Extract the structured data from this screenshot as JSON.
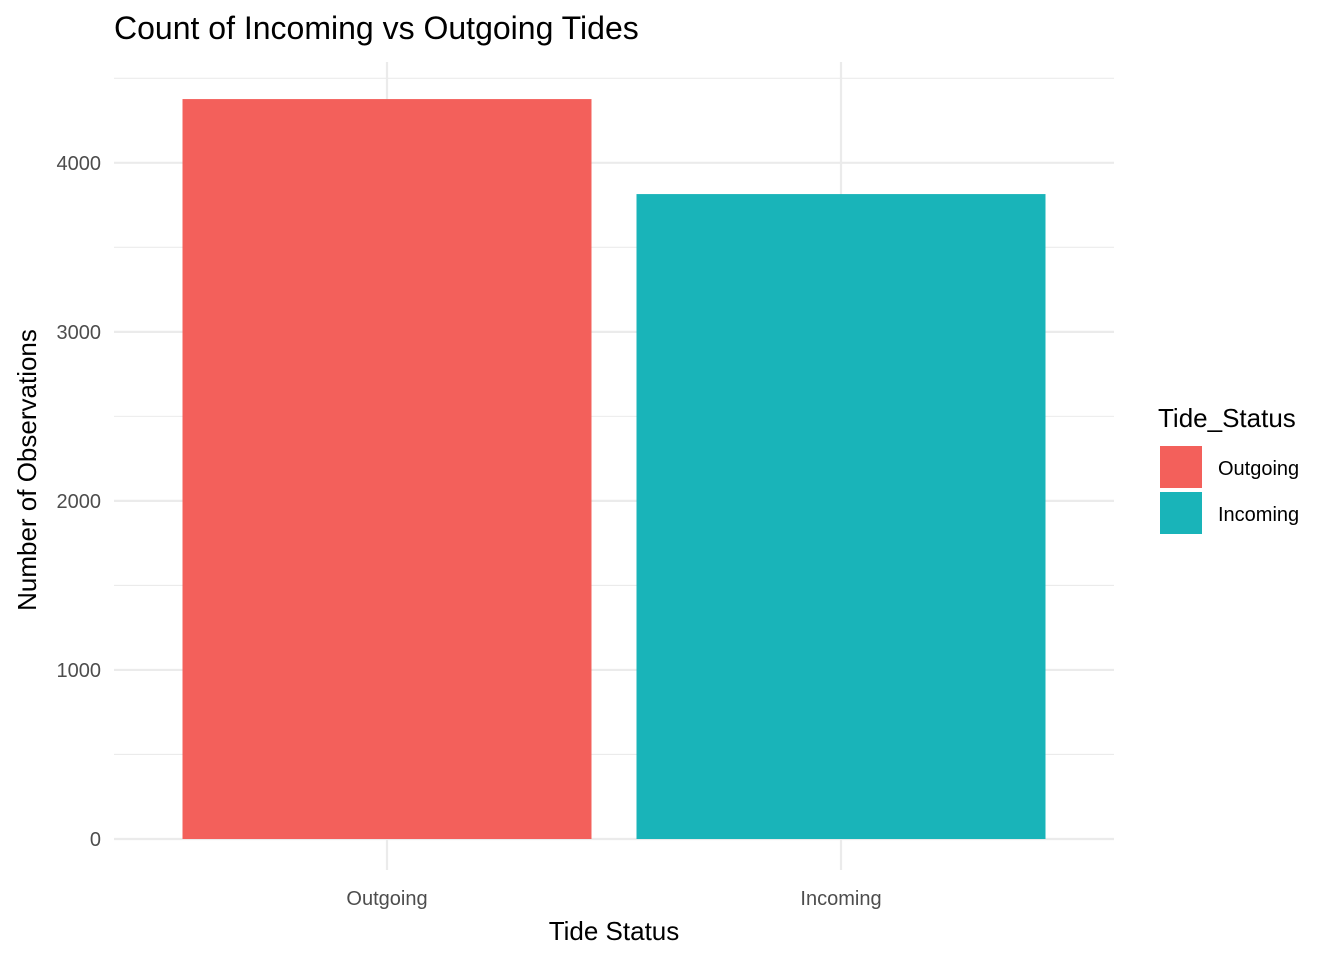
{
  "chart_data": {
    "type": "bar",
    "title": "Count of Incoming vs Outgoing Tides",
    "xlabel": "Tide Status",
    "ylabel": "Number of Observations",
    "categories": [
      "Outgoing",
      "Incoming"
    ],
    "values": [
      4377,
      3815
    ],
    "colors": [
      "#F3605B",
      "#19B4B9"
    ],
    "ylim": [
      0,
      4600
    ],
    "yticks": [
      0,
      1000,
      2000,
      3000,
      4000
    ],
    "grid": true,
    "legend": {
      "title": "Tide_Status",
      "position": "right",
      "entries": [
        {
          "label": "Outgoing",
          "color": "#F3605B"
        },
        {
          "label": "Incoming",
          "color": "#19B4B9"
        }
      ]
    }
  }
}
